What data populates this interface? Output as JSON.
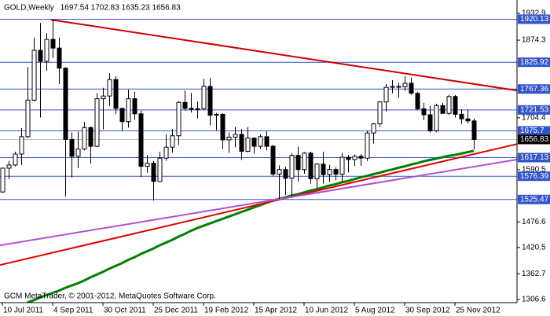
{
  "chart_data": {
    "type": "candlestick",
    "title": "GOLD,Weekly",
    "ohlc_text": "1697.54 1702.83 1635.23 1656.83",
    "footer": "GCM MetaTrader, © 2001-2012, MetaQuotes Software Corp.",
    "categories": [
      "10 Jul 2011",
      null,
      null,
      null,
      null,
      null,
      null,
      null,
      "4 Sep 2011",
      null,
      null,
      null,
      null,
      null,
      null,
      null,
      "30 Oct 2011",
      null,
      null,
      null,
      null,
      null,
      null,
      null,
      "25 Dec 2011",
      null,
      null,
      null,
      null,
      null,
      null,
      null,
      "19 Feb 2012",
      null,
      null,
      null,
      null,
      null,
      null,
      null,
      "15 Apr 2012",
      null,
      null,
      null,
      null,
      null,
      null,
      null,
      "10 Jun 2012",
      null,
      null,
      null,
      null,
      null,
      null,
      null,
      "5 Aug 2012",
      null,
      null,
      null,
      null,
      null,
      null,
      null,
      "30 Sep 2012",
      null,
      null,
      null,
      null,
      null,
      null,
      null,
      "25 Nov 2012",
      null,
      null,
      null
    ],
    "open": [
      1542,
      1594,
      1601,
      1625,
      1663,
      1743,
      1852,
      1828,
      1876,
      1857,
      1813,
      1657,
      1620,
      1636,
      1683,
      1642,
      1746,
      1752,
      1788,
      1725,
      1696,
      1746,
      1713,
      1598,
      1605,
      1565,
      1616,
      1640,
      1665,
      1738,
      1725,
      1723,
      1724,
      1773,
      1710,
      1712,
      1656,
      1662,
      1668,
      1631,
      1660,
      1642,
      1663,
      1642,
      1581,
      1591,
      1572,
      1622,
      1591,
      1627,
      1571,
      1603,
      1580,
      1591,
      1581,
      1618,
      1613,
      1620,
      1616,
      1671,
      1691,
      1739,
      1771,
      1773,
      1772,
      1780,
      1758,
      1724,
      1711,
      1676,
      1731,
      1714,
      1751,
      1712,
      1702,
      1697.54
    ],
    "high": [
      1595,
      1610,
      1630,
      1682,
      1815,
      1880,
      1912,
      1890,
      1921,
      1880,
      1815,
      1672,
      1674,
      1695,
      1685,
      1758,
      1770,
      1802,
      1795,
      1725,
      1766,
      1761,
      1720,
      1623,
      1610,
      1630,
      1668,
      1680,
      1741,
      1764,
      1759,
      1740,
      1790,
      1791,
      1715,
      1714,
      1672,
      1684,
      1680,
      1684,
      1660,
      1668,
      1675,
      1645,
      1600,
      1597,
      1627,
      1641,
      1629,
      1630,
      1605,
      1630,
      1601,
      1596,
      1627,
      1623,
      1624,
      1625,
      1676,
      1693,
      1741,
      1778,
      1787,
      1781,
      1795,
      1792,
      1761,
      1737,
      1731,
      1735,
      1737,
      1755,
      1754,
      1723,
      1722,
      1702.83
    ],
    "low": [
      1540,
      1570,
      1598,
      1601,
      1660,
      1740,
      1705,
      1807,
      1835,
      1778,
      1532,
      1574,
      1594,
      1633,
      1604,
      1640,
      1679,
      1730,
      1713,
      1676,
      1683,
      1700,
      1575,
      1584,
      1523,
      1564,
      1610,
      1628,
      1645,
      1720,
      1716,
      1703,
      1722,
      1688,
      1677,
      1636,
      1627,
      1640,
      1612,
      1629,
      1626,
      1636,
      1633,
      1577,
      1527,
      1535,
      1533,
      1565,
      1582,
      1560,
      1549,
      1560,
      1564,
      1568,
      1564,
      1585,
      1599,
      1599,
      1610,
      1648,
      1685,
      1718,
      1758,
      1748,
      1763,
      1755,
      1721,
      1699,
      1672,
      1673,
      1714,
      1711,
      1705,
      1691,
      1692,
      1635.23
    ],
    "close": [
      1594,
      1601,
      1625,
      1663,
      1743,
      1852,
      1828,
      1876,
      1857,
      1813,
      1657,
      1620,
      1636,
      1683,
      1642,
      1746,
      1752,
      1788,
      1725,
      1696,
      1746,
      1713,
      1598,
      1605,
      1565,
      1616,
      1640,
      1665,
      1738,
      1725,
      1723,
      1724,
      1773,
      1710,
      1712,
      1656,
      1662,
      1668,
      1631,
      1660,
      1642,
      1663,
      1642,
      1581,
      1591,
      1572,
      1622,
      1591,
      1627,
      1571,
      1603,
      1580,
      1591,
      1581,
      1618,
      1613,
      1620,
      1616,
      1671,
      1691,
      1739,
      1771,
      1773,
      1772,
      1780,
      1758,
      1724,
      1711,
      1676,
      1731,
      1714,
      1751,
      1712,
      1702,
      1697.54,
      1656.83
    ],
    "up_color": "#ffffff",
    "down_color": "#000000",
    "moving_average": {
      "color": "#008000",
      "values": [
        null,
        null,
        null,
        null,
        1300,
        1305,
        1311,
        1316,
        1321,
        1326,
        1332,
        1337,
        1342,
        1348,
        1355,
        1361,
        1367,
        1374,
        1380,
        1386,
        1393,
        1399,
        1406,
        1412,
        1418,
        1425,
        1431,
        1437,
        1444,
        1450,
        1457,
        1463,
        1468,
        1473,
        1478,
        1483,
        1488,
        1493,
        1498,
        1503,
        1508,
        1513,
        1518,
        1523,
        1527,
        1530,
        1534,
        1537,
        1541,
        1545,
        1548,
        1552,
        1556,
        1559,
        1563,
        1566,
        1570,
        1574,
        1577,
        1581,
        1584,
        1588,
        1591,
        1595,
        1598,
        1602,
        1605,
        1609,
        1612,
        1615,
        1618,
        1621,
        1623,
        1626,
        1629,
        1632
      ]
    },
    "levels": [
      1920.13,
      1825.92,
      1767.36,
      1721.53,
      1675.7,
      1617.13,
      1576.39,
      1525.47
    ],
    "level_color": "#3355cc",
    "current_price": 1656.83,
    "trendlines": [
      {
        "color": "#cc0000",
        "start": [
          7.75,
          1919
        ],
        "end": [
          81.9,
          1764
        ]
      },
      {
        "color": "#e00000",
        "start": [
          -0.4,
          1382
        ],
        "end": [
          81.9,
          1647
        ]
      },
      {
        "color": "#b050d0",
        "start": [
          -0.4,
          1425
        ],
        "end": [
          81.9,
          1613
        ]
      }
    ],
    "ylim": [
      1299.7,
      1962.2
    ],
    "yticks": [
      1932.9,
      1874.3,
      1704.4,
      1590.5,
      1476.6,
      1420.5,
      1362.7,
      1306.6
    ]
  }
}
